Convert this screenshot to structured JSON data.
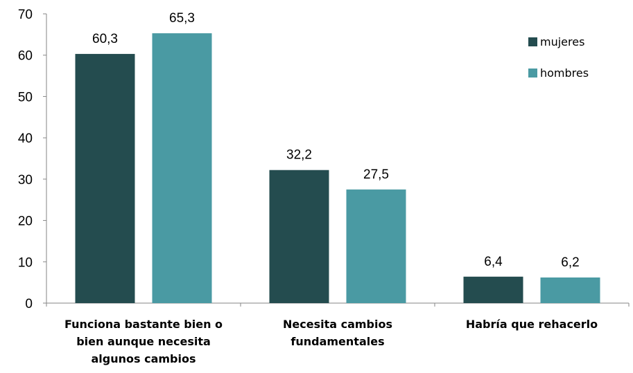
{
  "chart_data": {
    "type": "bar",
    "categories": [
      [
        "Funciona  bastante bien o",
        "bien aunque necesita",
        "algunos cambios"
      ],
      [
        "Necesita cambios",
        "fundamentales"
      ],
      [
        "Habría que rehacerlo"
      ]
    ],
    "series": [
      {
        "name": "mujeres",
        "color": "#244c4f",
        "values": [
          60.3,
          32.2,
          6.4
        ],
        "labels": [
          "60,3",
          "32,2",
          "6,4"
        ]
      },
      {
        "name": "hombres",
        "color": "#4a9aa3",
        "values": [
          65.3,
          27.5,
          6.2
        ],
        "labels": [
          "65,3",
          "27,5",
          "6,2"
        ]
      }
    ],
    "ylim": [
      0,
      70
    ],
    "yticks": [
      0,
      10,
      20,
      30,
      40,
      50,
      60,
      70
    ],
    "grid": false,
    "legend": "top-right"
  }
}
